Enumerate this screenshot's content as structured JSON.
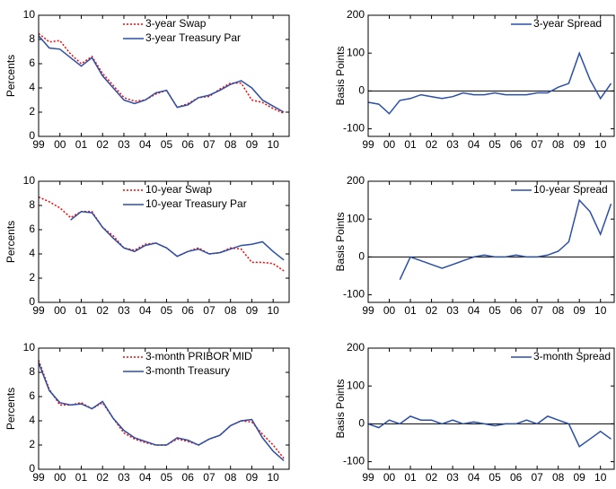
{
  "chart_data": [
    {
      "type": "line",
      "ylabel": "Percents",
      "legend": "upper right",
      "grid": false,
      "x": [
        1999,
        1999.5,
        2000,
        2000.5,
        2001,
        2001.5,
        2002,
        2002.5,
        2003,
        2003.5,
        2004,
        2004.5,
        2005,
        2005.5,
        2006,
        2006.5,
        2007,
        2007.5,
        2008,
        2008.5,
        2009,
        2009.5,
        2010,
        2010.5
      ],
      "xlim": [
        1999,
        2010.75
      ],
      "xticks": [
        {
          "value": 1999,
          "label": "99"
        },
        {
          "value": 2000,
          "label": "00"
        },
        {
          "value": 2001,
          "label": "01"
        },
        {
          "value": 2002,
          "label": "02"
        },
        {
          "value": 2003,
          "label": "03"
        },
        {
          "value": 2004,
          "label": "04"
        },
        {
          "value": 2005,
          "label": "05"
        },
        {
          "value": 2006,
          "label": "06"
        },
        {
          "value": 2007,
          "label": "07"
        },
        {
          "value": 2008,
          "label": "08"
        },
        {
          "value": 2009,
          "label": "09"
        },
        {
          "value": 2010,
          "label": "10"
        }
      ],
      "ylim": [
        0,
        10
      ],
      "yticks": [
        0,
        2,
        4,
        6,
        8,
        10
      ],
      "series": [
        {
          "name": "3-year Swap",
          "color": "#ff0000",
          "style": "dotted",
          "values": [
            8.5,
            7.8,
            7.9,
            6.8,
            6.0,
            6.6,
            5.2,
            4.2,
            3.2,
            2.9,
            3.0,
            3.5,
            3.8,
            2.4,
            2.7,
            3.2,
            3.3,
            3.9,
            4.4,
            4.4,
            3.0,
            2.8,
            2.3,
            1.9
          ]
        },
        {
          "name": "3-year Treasury Par",
          "color": "#2a4fa8",
          "style": "solid",
          "values": [
            8.3,
            7.3,
            7.2,
            6.5,
            5.8,
            6.5,
            5.0,
            4.0,
            3.0,
            2.7,
            3.0,
            3.6,
            3.8,
            2.4,
            2.6,
            3.2,
            3.4,
            3.8,
            4.3,
            4.6,
            4.0,
            3.0,
            2.5,
            2.0
          ]
        }
      ]
    },
    {
      "type": "line",
      "ylabel": "Basis Points",
      "legend": "upper right",
      "grid": false,
      "hline": 0,
      "x": [
        1999,
        1999.5,
        2000,
        2000.5,
        2001,
        2001.5,
        2002,
        2002.5,
        2003,
        2003.5,
        2004,
        2004.5,
        2005,
        2005.5,
        2006,
        2006.5,
        2007,
        2007.5,
        2008,
        2008.5,
        2009,
        2009.5,
        2010,
        2010.5
      ],
      "xlim": [
        1999,
        2010.65
      ],
      "xticks": [
        {
          "value": 1999,
          "label": "99"
        },
        {
          "value": 2000,
          "label": "00"
        },
        {
          "value": 2001,
          "label": "01"
        },
        {
          "value": 2002,
          "label": "02"
        },
        {
          "value": 2003,
          "label": "03"
        },
        {
          "value": 2004,
          "label": "04"
        },
        {
          "value": 2005,
          "label": "05"
        },
        {
          "value": 2006,
          "label": "06"
        },
        {
          "value": 2007,
          "label": "07"
        },
        {
          "value": 2008,
          "label": "08"
        },
        {
          "value": 2009,
          "label": "09"
        },
        {
          "value": 2010,
          "label": "10"
        }
      ],
      "ylim": [
        -120,
        200
      ],
      "yticks": [
        -100,
        0,
        100,
        200
      ],
      "series": [
        {
          "name": "3-year Spread",
          "color": "#2a4fa8",
          "style": "solid",
          "values": [
            -30,
            -35,
            -60,
            -25,
            -20,
            -10,
            -15,
            -20,
            -15,
            -5,
            -10,
            -10,
            -5,
            -10,
            -10,
            -10,
            -5,
            -5,
            10,
            20,
            100,
            30,
            -20,
            20
          ]
        }
      ]
    },
    {
      "type": "line",
      "ylabel": "Percents",
      "legend": "upper right",
      "grid": false,
      "x": [
        1999,
        1999.5,
        2000,
        2000.5,
        2001,
        2001.5,
        2002,
        2002.5,
        2003,
        2003.5,
        2004,
        2004.5,
        2005,
        2005.5,
        2006,
        2006.5,
        2007,
        2007.5,
        2008,
        2008.5,
        2009,
        2009.5,
        2010,
        2010.5
      ],
      "xlim": [
        1999,
        2010.75
      ],
      "xticks": [
        {
          "value": 1999,
          "label": "99"
        },
        {
          "value": 2000,
          "label": "00"
        },
        {
          "value": 2001,
          "label": "01"
        },
        {
          "value": 2002,
          "label": "02"
        },
        {
          "value": 2003,
          "label": "03"
        },
        {
          "value": 2004,
          "label": "04"
        },
        {
          "value": 2005,
          "label": "05"
        },
        {
          "value": 2006,
          "label": "06"
        },
        {
          "value": 2007,
          "label": "07"
        },
        {
          "value": 2008,
          "label": "08"
        },
        {
          "value": 2009,
          "label": "09"
        },
        {
          "value": 2010,
          "label": "10"
        }
      ],
      "ylim": [
        0,
        10
      ],
      "yticks": [
        0,
        2,
        4,
        6,
        8,
        10
      ],
      "series": [
        {
          "name": "10-year Swap",
          "color": "#ff0000",
          "style": "dotted",
          "values": [
            8.7,
            8.3,
            7.8,
            7.0,
            7.5,
            7.5,
            6.2,
            5.5,
            4.5,
            4.3,
            4.8,
            4.9,
            4.5,
            3.8,
            4.2,
            4.5,
            4.0,
            4.1,
            4.5,
            4.4,
            3.3,
            3.3,
            3.2,
            2.6
          ]
        },
        {
          "name": "10-year Treasury Par",
          "color": "#2a4fa8",
          "style": "solid",
          "values": [
            null,
            null,
            null,
            6.8,
            7.5,
            7.4,
            6.2,
            5.3,
            4.5,
            4.2,
            4.7,
            4.9,
            4.5,
            3.8,
            4.2,
            4.4,
            4.0,
            4.1,
            4.4,
            4.7,
            4.8,
            5.0,
            4.2,
            3.5
          ]
        }
      ]
    },
    {
      "type": "line",
      "ylabel": "Basis Points",
      "legend": "upper right",
      "grid": false,
      "hline": 0,
      "x": [
        1999,
        1999.5,
        2000,
        2000.5,
        2001,
        2001.5,
        2002,
        2002.5,
        2003,
        2003.5,
        2004,
        2004.5,
        2005,
        2005.5,
        2006,
        2006.5,
        2007,
        2007.5,
        2008,
        2008.5,
        2009,
        2009.5,
        2010,
        2010.5
      ],
      "xlim": [
        1999,
        2010.65
      ],
      "xticks": [
        {
          "value": 1999,
          "label": "99"
        },
        {
          "value": 2000,
          "label": "00"
        },
        {
          "value": 2001,
          "label": "01"
        },
        {
          "value": 2002,
          "label": "02"
        },
        {
          "value": 2003,
          "label": "03"
        },
        {
          "value": 2004,
          "label": "04"
        },
        {
          "value": 2005,
          "label": "05"
        },
        {
          "value": 2006,
          "label": "06"
        },
        {
          "value": 2007,
          "label": "07"
        },
        {
          "value": 2008,
          "label": "08"
        },
        {
          "value": 2009,
          "label": "09"
        },
        {
          "value": 2010,
          "label": "10"
        }
      ],
      "ylim": [
        -120,
        200
      ],
      "yticks": [
        -100,
        0,
        100,
        200
      ],
      "series": [
        {
          "name": "10-year Spread",
          "color": "#2a4fa8",
          "style": "solid",
          "values": [
            null,
            null,
            null,
            -60,
            0,
            -10,
            -20,
            -30,
            -20,
            -10,
            0,
            5,
            0,
            0,
            5,
            0,
            0,
            5,
            15,
            40,
            150,
            120,
            60,
            140
          ]
        }
      ]
    },
    {
      "type": "line",
      "ylabel": "Percents",
      "legend": "upper right",
      "grid": false,
      "x": [
        1999,
        1999.5,
        2000,
        2000.5,
        2001,
        2001.5,
        2002,
        2002.5,
        2003,
        2003.5,
        2004,
        2004.5,
        2005,
        2005.5,
        2006,
        2006.5,
        2007,
        2007.5,
        2008,
        2008.5,
        2009,
        2009.5,
        2010,
        2010.5
      ],
      "xlim": [
        1999,
        2010.75
      ],
      "xticks": [
        {
          "value": 1999,
          "label": "99"
        },
        {
          "value": 2000,
          "label": "00"
        },
        {
          "value": 2001,
          "label": "01"
        },
        {
          "value": 2002,
          "label": "02"
        },
        {
          "value": 2003,
          "label": "03"
        },
        {
          "value": 2004,
          "label": "04"
        },
        {
          "value": 2005,
          "label": "05"
        },
        {
          "value": 2006,
          "label": "06"
        },
        {
          "value": 2007,
          "label": "07"
        },
        {
          "value": 2008,
          "label": "08"
        },
        {
          "value": 2009,
          "label": "09"
        },
        {
          "value": 2010,
          "label": "10"
        }
      ],
      "ylim": [
        0,
        10
      ],
      "yticks": [
        0,
        2,
        4,
        6,
        8,
        10
      ],
      "series": [
        {
          "name": "3-month PRIBOR MID",
          "color": "#ff0000",
          "style": "dotted",
          "values": [
            9.0,
            6.6,
            5.3,
            5.3,
            5.5,
            5.0,
            5.5,
            4.2,
            3.0,
            2.5,
            2.2,
            2.0,
            2.0,
            2.5,
            2.3,
            2.0,
            2.5,
            2.8,
            3.6,
            4.0,
            3.9,
            2.9,
            2.0,
            0.9
          ]
        },
        {
          "name": "3-month Treasury",
          "color": "#2a4fa8",
          "style": "solid",
          "values": [
            8.8,
            6.5,
            5.5,
            5.3,
            5.4,
            5.0,
            5.6,
            4.2,
            3.2,
            2.6,
            2.3,
            2.0,
            2.0,
            2.6,
            2.4,
            2.0,
            2.5,
            2.8,
            3.6,
            4.0,
            4.1,
            2.6,
            1.5,
            0.7
          ]
        }
      ]
    },
    {
      "type": "line",
      "ylabel": "Basis Points",
      "legend": "upper right",
      "grid": false,
      "hline": 0,
      "x": [
        1999,
        1999.5,
        2000,
        2000.5,
        2001,
        2001.5,
        2002,
        2002.5,
        2003,
        2003.5,
        2004,
        2004.5,
        2005,
        2005.5,
        2006,
        2006.5,
        2007,
        2007.5,
        2008,
        2008.5,
        2009,
        2009.5,
        2010,
        2010.5
      ],
      "xlim": [
        1999,
        2010.65
      ],
      "xticks": [
        {
          "value": 1999,
          "label": "99"
        },
        {
          "value": 2000,
          "label": "00"
        },
        {
          "value": 2001,
          "label": "01"
        },
        {
          "value": 2002,
          "label": "02"
        },
        {
          "value": 2003,
          "label": "03"
        },
        {
          "value": 2004,
          "label": "04"
        },
        {
          "value": 2005,
          "label": "05"
        },
        {
          "value": 2006,
          "label": "06"
        },
        {
          "value": 2007,
          "label": "07"
        },
        {
          "value": 2008,
          "label": "08"
        },
        {
          "value": 2009,
          "label": "09"
        },
        {
          "value": 2010,
          "label": "10"
        }
      ],
      "ylim": [
        -120,
        200
      ],
      "yticks": [
        -100,
        0,
        100,
        200
      ],
      "series": [
        {
          "name": "3-month Spread",
          "color": "#2a4fa8",
          "style": "solid",
          "values": [
            0,
            -10,
            10,
            0,
            20,
            10,
            10,
            0,
            10,
            0,
            5,
            0,
            -5,
            0,
            0,
            10,
            0,
            20,
            10,
            0,
            -60,
            -40,
            -20,
            -40
          ]
        }
      ]
    }
  ]
}
